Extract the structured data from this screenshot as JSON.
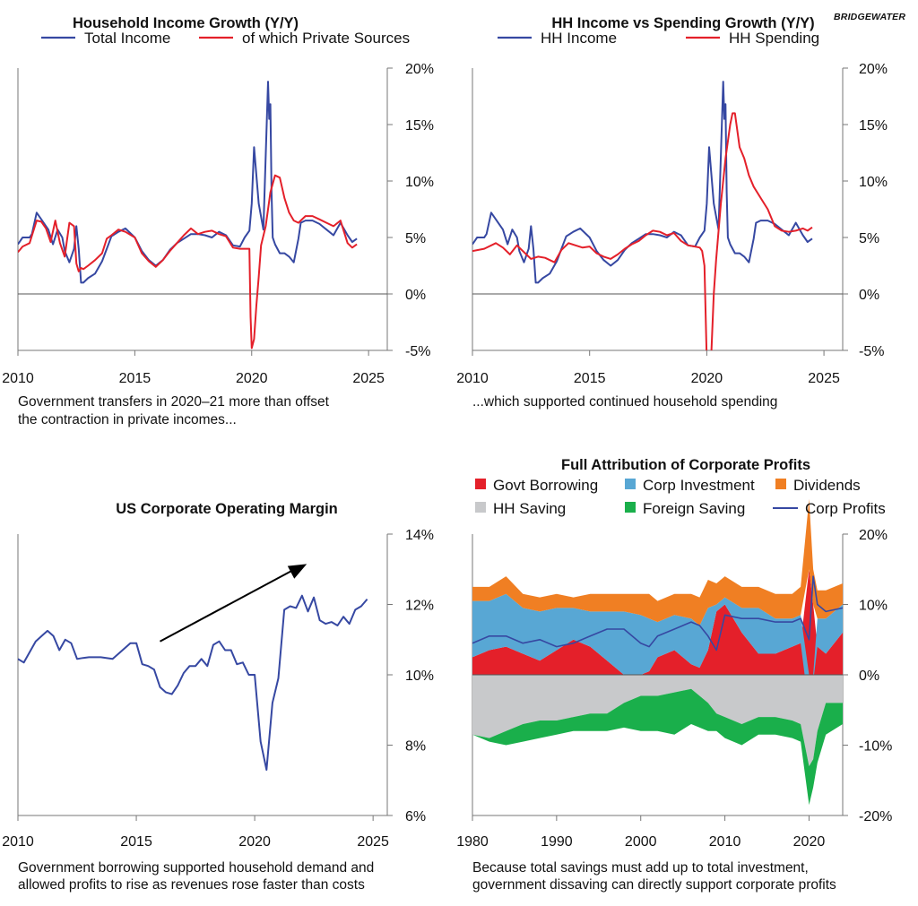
{
  "brand": "BRIDGEWATER",
  "colors": {
    "blue": "#3648a2",
    "red": "#e4202a",
    "orange": "#f07f23",
    "lightblue": "#58a7d4",
    "gray": "#c8c9cb",
    "green": "#1aaf4b"
  },
  "chart_data": [
    {
      "type": "line",
      "title": "Household Income Growth (Y/Y)",
      "caption": [
        "Government transfers in 2020–21 more than offset",
        "the contraction in private incomes..."
      ],
      "x_ticks": [
        "2010",
        "2015",
        "2020",
        "2025"
      ],
      "y_ticks": [
        "20%",
        "15%",
        "10%",
        "5%",
        "0%",
        "-5%"
      ],
      "xlim": [
        2010,
        2025.8
      ],
      "ylim": [
        -5,
        20
      ],
      "legend": "top",
      "series": [
        {
          "name": "Total Income",
          "color": "#3648a2",
          "x": [
            2010,
            2010.2,
            2010.5,
            2010.6,
            2010.8,
            2011,
            2011.2,
            2011.3,
            2011.5,
            2011.7,
            2011.9,
            2012,
            2012.2,
            2012.4,
            2012.5,
            2012.6,
            2012.7,
            2012.8,
            2012.9,
            2013,
            2013.3,
            2013.6,
            2013.8,
            2014,
            2014.3,
            2014.6,
            2015,
            2015.3,
            2015.6,
            2015.9,
            2016.2,
            2016.5,
            2016.8,
            2017.1,
            2017.4,
            2017.7,
            2018,
            2018.3,
            2018.6,
            2018.9,
            2019.2,
            2019.5,
            2019.7,
            2019.9,
            2020,
            2020.1,
            2020.3,
            2020.5,
            2020.7,
            2020.75,
            2020.8,
            2020.85,
            2020.9,
            2021,
            2021.2,
            2021.4,
            2021.6,
            2021.8,
            2022,
            2022.1,
            2022.3,
            2022.6,
            2022.9,
            2023.2,
            2023.5,
            2023.8,
            2024.1,
            2024.3,
            2024.5
          ],
          "y": [
            4.4,
            5,
            5,
            5.3,
            7.2,
            6.6,
            6,
            5.7,
            4.4,
            5.7,
            5,
            3.8,
            2.8,
            4,
            6,
            4,
            1,
            1,
            1.2,
            1.4,
            1.8,
            2.9,
            4,
            5.1,
            5.5,
            5.8,
            5,
            3.8,
            3,
            2.5,
            3,
            3.9,
            4.5,
            4.9,
            5.3,
            5.3,
            5.2,
            5,
            5.5,
            5.2,
            4.3,
            4.2,
            5,
            5.6,
            8,
            13,
            8,
            5.7,
            18.8,
            15.5,
            16.8,
            9,
            5,
            4.4,
            3.6,
            3.6,
            3.3,
            2.8,
            4.9,
            6.3,
            6.5,
            6.5,
            6.2,
            5.7,
            5.2,
            6.3,
            5.2,
            4.6,
            4.9
          ]
        },
        {
          "name": "of which Private Sources",
          "color": "#e4202a",
          "x": [
            2010,
            2010.2,
            2010.5,
            2010.8,
            2011,
            2011.2,
            2011.4,
            2011.6,
            2011.8,
            2012,
            2012.2,
            2012.4,
            2012.5,
            2012.6,
            2012.7,
            2012.8,
            2013,
            2013.3,
            2013.6,
            2013.8,
            2014,
            2014.3,
            2014.6,
            2015,
            2015.3,
            2015.6,
            2015.9,
            2016.2,
            2016.5,
            2016.8,
            2017.1,
            2017.4,
            2017.7,
            2018,
            2018.3,
            2018.6,
            2018.9,
            2019.2,
            2019.5,
            2019.7,
            2019.8,
            2019.9,
            2019.95,
            2020,
            2020.1,
            2020.2,
            2020.3,
            2020.4,
            2020.6,
            2020.8,
            2021,
            2021.2,
            2021.4,
            2021.6,
            2021.8,
            2022,
            2022.3,
            2022.6,
            2022.9,
            2023.2,
            2023.5,
            2023.8,
            2024.1,
            2024.3,
            2024.5
          ],
          "y": [
            3.7,
            4.2,
            4.5,
            6.5,
            6.4,
            5.8,
            4.6,
            6.5,
            4.5,
            3.3,
            6.3,
            6,
            2.7,
            2,
            2.3,
            2.2,
            2.5,
            3,
            3.6,
            4.9,
            5.2,
            5.7,
            5.5,
            5,
            3.6,
            2.9,
            2.4,
            3,
            3.8,
            4.5,
            5.2,
            5.8,
            5.3,
            5.5,
            5.6,
            5.3,
            5.1,
            4.1,
            4,
            4,
            4,
            4,
            -2,
            -4.8,
            -4,
            -1,
            1.5,
            4.3,
            6,
            9,
            10.5,
            10.3,
            8.5,
            7.2,
            6.5,
            6.3,
            6.9,
            6.9,
            6.6,
            6.3,
            6,
            6.5,
            4.5,
            4.1,
            4.4
          ]
        }
      ]
    },
    {
      "type": "line",
      "title": "HH Income vs Spending Growth (Y/Y)",
      "caption": [
        "...which supported continued household spending"
      ],
      "x_ticks": [
        "2010",
        "2015",
        "2020",
        "2025"
      ],
      "y_ticks": [
        "20%",
        "15%",
        "10%",
        "5%",
        "0%",
        "-5%"
      ],
      "xlim": [
        2010,
        2025.8
      ],
      "ylim": [
        -5,
        20
      ],
      "legend": "top",
      "series": [
        {
          "name": "HH Income",
          "color": "#3648a2",
          "x": [
            2010,
            2010.2,
            2010.5,
            2010.6,
            2010.8,
            2011,
            2011.2,
            2011.3,
            2011.5,
            2011.7,
            2011.9,
            2012,
            2012.2,
            2012.4,
            2012.5,
            2012.6,
            2012.7,
            2012.8,
            2012.9,
            2013,
            2013.3,
            2013.6,
            2013.8,
            2014,
            2014.3,
            2014.6,
            2015,
            2015.3,
            2015.6,
            2015.9,
            2016.2,
            2016.5,
            2016.8,
            2017.1,
            2017.4,
            2017.7,
            2018,
            2018.3,
            2018.6,
            2018.9,
            2019.2,
            2019.5,
            2019.7,
            2019.9,
            2020,
            2020.1,
            2020.3,
            2020.5,
            2020.7,
            2020.75,
            2020.8,
            2020.85,
            2020.9,
            2021,
            2021.2,
            2021.4,
            2021.6,
            2021.8,
            2022,
            2022.1,
            2022.3,
            2022.6,
            2022.9,
            2023.2,
            2023.5,
            2023.8,
            2024.1,
            2024.3,
            2024.5
          ],
          "y": [
            4.4,
            5,
            5,
            5.3,
            7.2,
            6.6,
            6,
            5.7,
            4.4,
            5.7,
            5,
            3.8,
            2.8,
            4,
            6,
            4,
            1,
            1,
            1.2,
            1.4,
            1.8,
            2.9,
            4,
            5.1,
            5.5,
            5.8,
            5,
            3.8,
            3,
            2.5,
            3,
            3.9,
            4.5,
            4.9,
            5.3,
            5.3,
            5.2,
            5,
            5.5,
            5.2,
            4.3,
            4.2,
            5,
            5.6,
            8,
            13,
            8,
            5.7,
            18.8,
            15.5,
            16.8,
            9,
            5,
            4.4,
            3.6,
            3.6,
            3.3,
            2.8,
            4.9,
            6.3,
            6.5,
            6.5,
            6.2,
            5.7,
            5.2,
            6.3,
            5.2,
            4.6,
            4.9
          ]
        },
        {
          "name": "HH Spending",
          "color": "#e4202a",
          "x": [
            2010,
            2010.5,
            2011,
            2011.3,
            2011.6,
            2011.9,
            2012.2,
            2012.5,
            2012.8,
            2013.1,
            2013.5,
            2013.8,
            2014.1,
            2014.4,
            2014.7,
            2015,
            2015.3,
            2015.6,
            2015.9,
            2016.2,
            2016.5,
            2016.8,
            2017.1,
            2017.4,
            2017.7,
            2018,
            2018.3,
            2018.6,
            2018.9,
            2019.2,
            2019.5,
            2019.7,
            2019.8,
            2019.9,
            2020,
            2020.1,
            2020.15,
            2020.2,
            2020.3,
            2020.4,
            2020.6,
            2020.8,
            2021,
            2021.1,
            2021.2,
            2021.4,
            2021.6,
            2021.8,
            2022,
            2022.3,
            2022.6,
            2022.9,
            2023.2,
            2023.5,
            2023.8,
            2024.1,
            2024.3,
            2024.5
          ],
          "y": [
            3.8,
            4,
            4.5,
            4.1,
            3.5,
            4.3,
            3.7,
            3.1,
            3.3,
            3.2,
            2.8,
            3.9,
            4.5,
            4.3,
            4.1,
            4.2,
            3.6,
            3.3,
            3.1,
            3.5,
            4,
            4.4,
            4.7,
            5.2,
            5.6,
            5.5,
            5.2,
            5.4,
            4.7,
            4.3,
            4.2,
            4.1,
            3.8,
            2.5,
            -6,
            -9,
            -9,
            -5,
            0,
            3,
            8,
            12,
            15,
            16,
            16,
            13,
            12,
            10.5,
            9.5,
            8.5,
            7.5,
            6,
            5.6,
            5.5,
            5.6,
            5.8,
            5.6,
            5.9
          ]
        }
      ]
    },
    {
      "type": "line",
      "title": "US Corporate Operating Margin",
      "caption": [
        "Government borrowing supported household demand and",
        "allowed profits to rise as revenues rose faster than costs"
      ],
      "x_ticks": [
        "2010",
        "2015",
        "2020",
        "2025"
      ],
      "y_ticks": [
        "14%",
        "12%",
        "10%",
        "8%",
        "6%"
      ],
      "xlim": [
        2010,
        2025.6
      ],
      "ylim": [
        6,
        14
      ],
      "annotation": "arrow pointing upward from 2016 to 2022",
      "series": [
        {
          "name": "",
          "color": "#3648a2",
          "x": [
            2010,
            2010.25,
            2010.5,
            2010.75,
            2011,
            2011.25,
            2011.5,
            2011.75,
            2012,
            2012.25,
            2012.5,
            2012.75,
            2013,
            2013.5,
            2014,
            2014.5,
            2014.75,
            2015,
            2015.25,
            2015.5,
            2015.75,
            2016,
            2016.25,
            2016.5,
            2016.75,
            2017,
            2017.25,
            2017.5,
            2017.75,
            2018,
            2018.25,
            2018.5,
            2018.75,
            2019,
            2019.25,
            2019.5,
            2019.75,
            2020,
            2020.25,
            2020.5,
            2020.75,
            2021,
            2021.25,
            2021.5,
            2021.75,
            2022,
            2022.25,
            2022.5,
            2022.75,
            2023,
            2023.25,
            2023.5,
            2023.75,
            2024,
            2024.25,
            2024.5,
            2024.75
          ],
          "y": [
            10.45,
            10.35,
            10.65,
            10.95,
            11.1,
            11.25,
            11.1,
            10.7,
            11.0,
            10.9,
            10.45,
            10.48,
            10.5,
            10.5,
            10.45,
            10.75,
            10.9,
            10.9,
            10.3,
            10.25,
            10.15,
            9.65,
            9.5,
            9.45,
            9.7,
            10.05,
            10.25,
            10.25,
            10.45,
            10.25,
            10.85,
            10.95,
            10.7,
            10.7,
            10.3,
            10.35,
            10.0,
            10.0,
            8.1,
            7.3,
            9.2,
            9.9,
            11.85,
            11.95,
            11.9,
            12.25,
            11.8,
            12.2,
            11.55,
            11.45,
            11.5,
            11.4,
            11.65,
            11.45,
            11.85,
            11.95,
            12.15
          ]
        }
      ]
    },
    {
      "type": "area",
      "title": "Full Attribution of Corporate Profits",
      "caption": [
        "Because total savings must add up to total investment,",
        "government dissaving can directly support corporate profits"
      ],
      "x_ticks": [
        "1980",
        "1990",
        "2000",
        "2010",
        "2020"
      ],
      "y_ticks": [
        "20%",
        "10%",
        "0%",
        "-10%",
        "-20%"
      ],
      "xlim": [
        1980,
        2024
      ],
      "ylim": [
        -20,
        20
      ],
      "legend": "top",
      "x": [
        1980,
        1982,
        1984,
        1986,
        1988,
        1990,
        1992,
        1994,
        1996,
        1998,
        2000,
        2001,
        2002,
        2004,
        2006,
        2007,
        2008,
        2009,
        2010,
        2012,
        2014,
        2016,
        2018,
        2019,
        2020,
        2020.5,
        2021,
        2022,
        2024
      ],
      "series": [
        {
          "name": "Govt Borrowing",
          "color": "#e4202a",
          "y": [
            2.5,
            3.5,
            4,
            3,
            2,
            3.5,
            5,
            4,
            2,
            0,
            -1,
            0.5,
            2.5,
            3.5,
            1.5,
            1,
            3.5,
            9,
            10,
            6,
            3,
            3,
            4,
            4.5,
            15,
            10,
            4,
            3,
            6
          ]
        },
        {
          "name": "Corp Investment",
          "color": "#58a7d4",
          "y": [
            8,
            7,
            7.5,
            6.5,
            7,
            6,
            4.5,
            5,
            7,
            9,
            8.5,
            7.5,
            5,
            5,
            6.5,
            6,
            6,
            1,
            1,
            3.5,
            6.5,
            5,
            4,
            4,
            -5,
            -1,
            4,
            5,
            4
          ]
        },
        {
          "name": "Dividends",
          "color": "#f07f23",
          "y": [
            2,
            2,
            2.5,
            2,
            2,
            2,
            1.5,
            2.5,
            2.5,
            2.5,
            3,
            3.5,
            3,
            3,
            3.5,
            4,
            4,
            3,
            3,
            3,
            3,
            3.5,
            3.5,
            4,
            10,
            5,
            4,
            4,
            3
          ]
        },
        {
          "name": "HH Saving",
          "color": "#c8c9cb",
          "y": [
            -8.5,
            -9,
            -8,
            -7,
            -6.5,
            -6.5,
            -6,
            -5.5,
            -5.5,
            -4,
            -3,
            -3,
            -3,
            -2.5,
            -2,
            -3,
            -4,
            -5.5,
            -6,
            -7,
            -6,
            -6,
            -6.5,
            -7,
            -13,
            -12,
            -8,
            -4,
            -4
          ]
        },
        {
          "name": "Foreign Saving",
          "color": "#1aaf4b",
          "y": [
            0,
            -0.5,
            -2,
            -2.5,
            -2.5,
            -2,
            -2,
            -2.5,
            -2.5,
            -3.5,
            -5,
            -5,
            -5,
            -6,
            -5,
            -4.5,
            -4,
            -2.5,
            -3,
            -3,
            -2.5,
            -2.5,
            -2.5,
            -2.5,
            -5.5,
            -4,
            -4.5,
            -4.5,
            -3
          ]
        },
        {
          "name": "Corp Profits",
          "color": "#3648a2",
          "y": [
            4.5,
            5.5,
            5.5,
            4.5,
            5,
            4,
            4.5,
            5.5,
            6.5,
            6.5,
            4.5,
            4,
            5.5,
            6.5,
            7.5,
            7,
            5.5,
            3.5,
            8.5,
            8,
            8,
            7.5,
            7.5,
            8,
            5,
            14,
            10,
            9,
            9.5
          ]
        }
      ]
    }
  ]
}
